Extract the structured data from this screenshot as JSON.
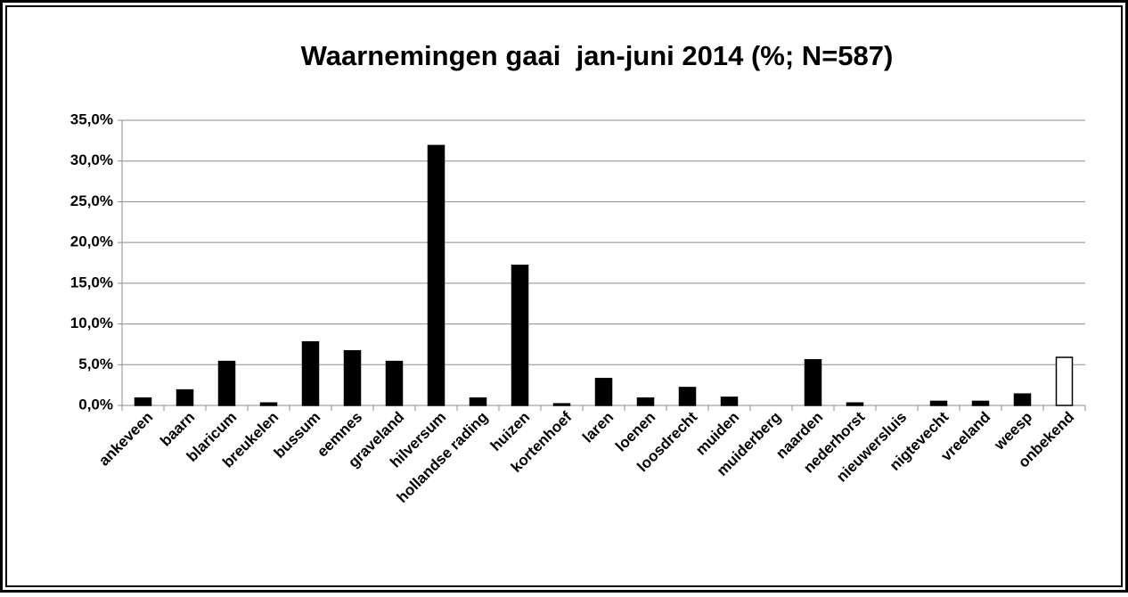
{
  "chart_data": {
    "type": "bar",
    "title": "Waarnemingen gaai  jan-juni 2014 (%; N=587)",
    "categories": [
      "ankeveen",
      "baarn",
      "blaricum",
      "breukelen",
      "bussum",
      "eemnes",
      "graveland",
      "hilversum",
      "hollandse rading",
      "huizen",
      "kortenhoef",
      "laren",
      "loenen",
      "loosdrecht",
      "muiden",
      "muiderberg",
      "naarden",
      "nederhorst",
      "nieuwersluis",
      "nigtevecht",
      "vreeland",
      "weesp",
      "onbekend"
    ],
    "values": [
      0.9,
      1.9,
      5.4,
      0.3,
      7.8,
      6.7,
      5.4,
      31.9,
      0.9,
      17.2,
      0.2,
      3.3,
      0.9,
      2.2,
      1.0,
      0,
      5.6,
      0.3,
      0,
      0.5,
      0.5,
      1.4,
      5.9
    ],
    "colors": [
      "#000000",
      "#000000",
      "#000000",
      "#000000",
      "#000000",
      "#000000",
      "#000000",
      "#000000",
      "#000000",
      "#000000",
      "#000000",
      "#000000",
      "#000000",
      "#000000",
      "#000000",
      "#000000",
      "#000000",
      "#000000",
      "#000000",
      "#000000",
      "#000000",
      "#000000",
      "#ffffff"
    ],
    "ylim": [
      0,
      35
    ],
    "yticks": [
      {
        "value": 0,
        "label": "0,0%"
      },
      {
        "value": 5,
        "label": "5,0%"
      },
      {
        "value": 10,
        "label": "10,0%"
      },
      {
        "value": 15,
        "label": "15,0%"
      },
      {
        "value": 20,
        "label": "20,0%"
      },
      {
        "value": 25,
        "label": "25,0%"
      },
      {
        "value": 30,
        "label": "30,0%"
      },
      {
        "value": 35,
        "label": "35,0%"
      }
    ],
    "grid": true
  }
}
